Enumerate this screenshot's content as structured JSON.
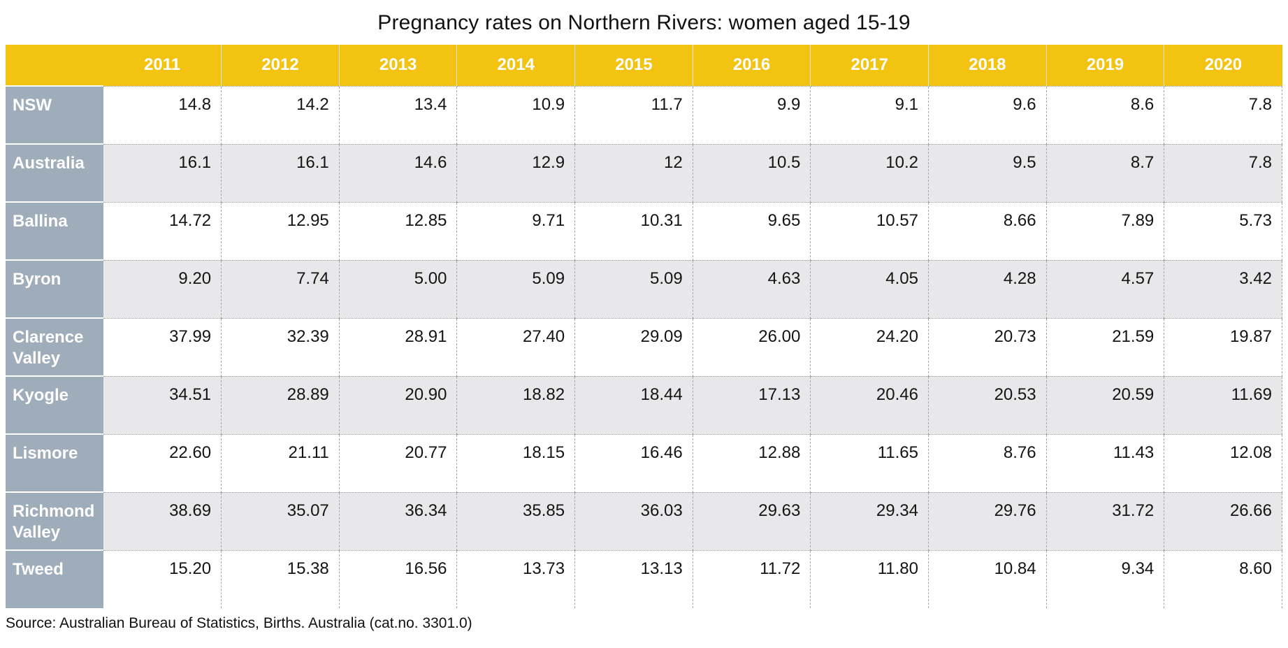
{
  "title": "Pregnancy rates on Northern Rivers: women aged 15-19",
  "source": "Source: Australian Bureau of Statistics, Births. Australia (cat.no. 3301.0)",
  "colors": {
    "header_bg": "#F2C311",
    "label_bg": "#9FADBB",
    "row_alt_bg": "#E8E8EA",
    "row_bg": "#FFFFFF",
    "header_text": "#FFFFFF",
    "value_text": "#141414"
  },
  "chart_data": {
    "type": "table",
    "title": "Pregnancy rates on Northern Rivers: women aged 15-19",
    "columns": [
      "2011",
      "2012",
      "2013",
      "2014",
      "2015",
      "2016",
      "2017",
      "2018",
      "2019",
      "2020"
    ],
    "rows": [
      {
        "label": "NSW",
        "values": [
          "14.8",
          "14.2",
          "13.4",
          "10.9",
          "11.7",
          "9.9",
          "9.1",
          "9.6",
          "8.6",
          "7.8"
        ]
      },
      {
        "label": "Australia",
        "values": [
          "16.1",
          "16.1",
          "14.6",
          "12.9",
          "12",
          "10.5",
          "10.2",
          "9.5",
          "8.7",
          "7.8"
        ]
      },
      {
        "label": "Ballina",
        "values": [
          "14.72",
          "12.95",
          "12.85",
          "9.71",
          "10.31",
          "9.65",
          "10.57",
          "8.66",
          "7.89",
          "5.73"
        ]
      },
      {
        "label": "Byron",
        "values": [
          "9.20",
          "7.74",
          "5.00",
          "5.09",
          "5.09",
          "4.63",
          "4.05",
          "4.28",
          "4.57",
          "3.42"
        ]
      },
      {
        "label": "Clarence Valley",
        "values": [
          "37.99",
          "32.39",
          "28.91",
          "27.40",
          "29.09",
          "26.00",
          "24.20",
          "20.73",
          "21.59",
          "19.87"
        ]
      },
      {
        "label": "Kyogle",
        "values": [
          "34.51",
          "28.89",
          "20.90",
          "18.82",
          "18.44",
          "17.13",
          "20.46",
          "20.53",
          "20.59",
          "11.69"
        ]
      },
      {
        "label": "Lismore",
        "values": [
          "22.60",
          "21.11",
          "20.77",
          "18.15",
          "16.46",
          "12.88",
          "11.65",
          "8.76",
          "11.43",
          "12.08"
        ]
      },
      {
        "label": "Richmond Valley",
        "values": [
          "38.69",
          "35.07",
          "36.34",
          "35.85",
          "36.03",
          "29.63",
          "29.34",
          "29.76",
          "31.72",
          "26.66"
        ]
      },
      {
        "label": "Tweed",
        "values": [
          "15.20",
          "15.38",
          "16.56",
          "13.73",
          "13.13",
          "11.72",
          "11.80",
          "10.84",
          "9.34",
          "8.60"
        ]
      }
    ],
    "source": "Source: Australian Bureau of Statistics, Births. Australia (cat.no. 3301.0)"
  }
}
